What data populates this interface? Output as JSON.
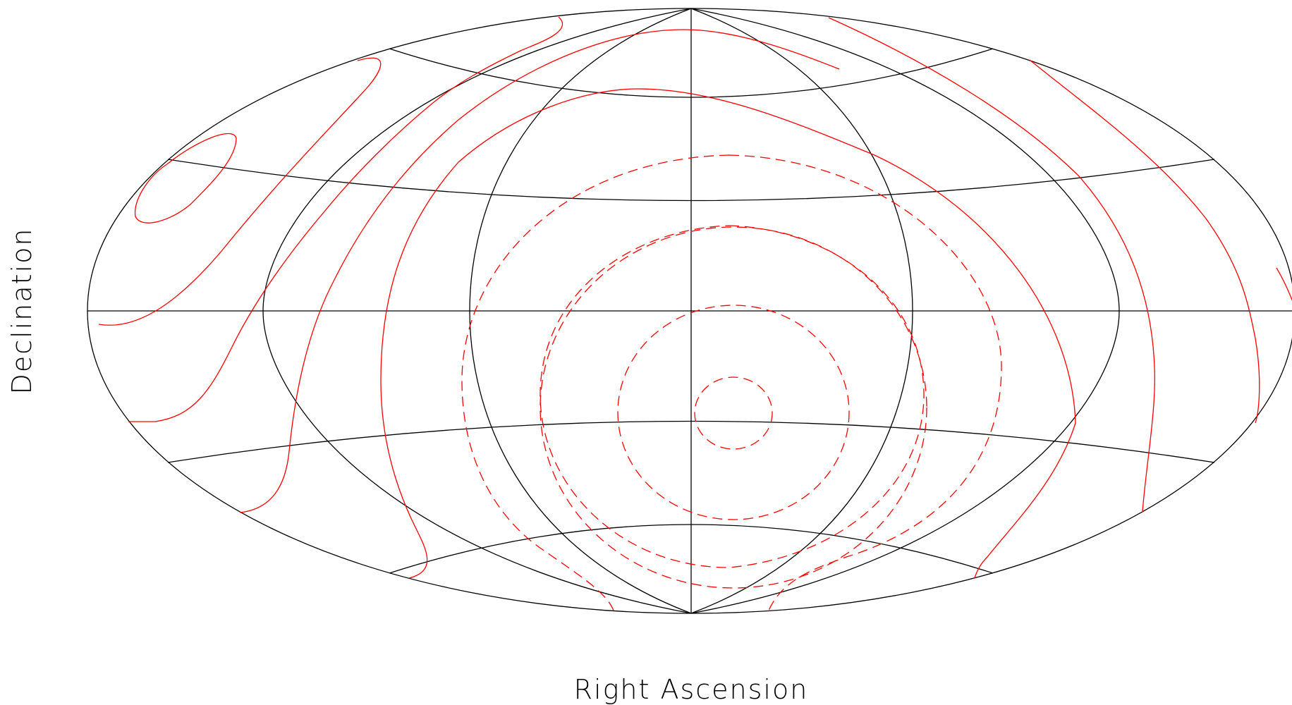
{
  "projection": "aitoff-hammer all-sky",
  "colors": {
    "background": "#ffffff",
    "grid": "#000000",
    "contour": "#ff0000"
  },
  "labels": {
    "xlabel": "Right Ascension",
    "ylabel": "Declination"
  },
  "grid": {
    "meridian_count": 6,
    "parallel_count": 4,
    "equator": true
  },
  "contours": {
    "solid_count": 7,
    "dashed_count": 5
  }
}
